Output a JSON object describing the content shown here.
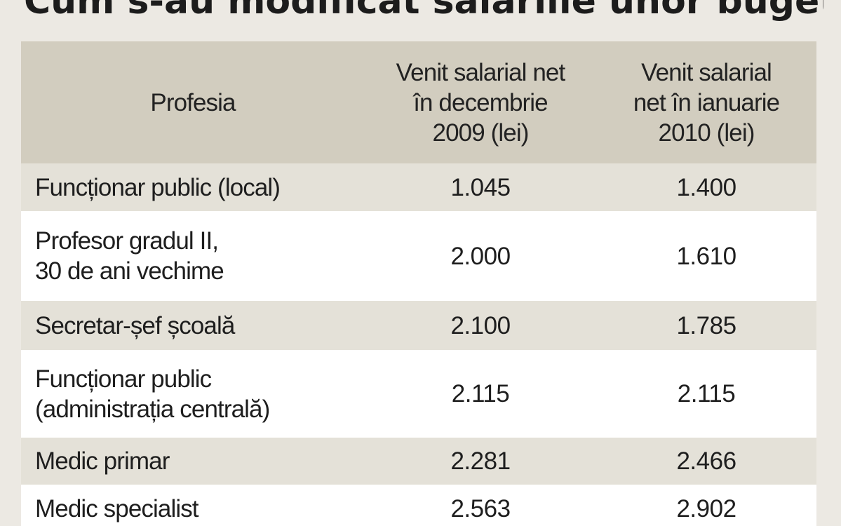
{
  "chart_data": {
    "type": "table",
    "title": "Cum s-au modificat salariile unor bugetari",
    "columns": [
      "Profesia",
      "Venit salarial net\nîn decembrie\n2009 (lei)",
      "Venit salarial\nnet în ianuarie\n2010 (lei)"
    ],
    "rows": [
      {
        "profesia": "Funcționar public (local)",
        "dec_2009": "1.045",
        "ian_2010": "1.400"
      },
      {
        "profesia": "Profesor gradul II,\n30 de ani vechime",
        "dec_2009": "2.000",
        "ian_2010": "1.610"
      },
      {
        "profesia": "Secretar-șef școală",
        "dec_2009": "2.100",
        "ian_2010": "1.785"
      },
      {
        "profesia": "Funcționar public\n(administrația centrală)",
        "dec_2009": "2.115",
        "ian_2010": "2.115"
      },
      {
        "profesia": "Medic primar",
        "dec_2009": "2.281",
        "ian_2010": "2.466"
      },
      {
        "profesia": "Medic specialist",
        "dec_2009": "2.563",
        "ian_2010": "2.902"
      }
    ],
    "colors": {
      "header_bg": "#d2cdbf",
      "row_shaded": "#e4e1d8",
      "row_white": "#ffffff",
      "text": "#1e1e1e"
    }
  }
}
